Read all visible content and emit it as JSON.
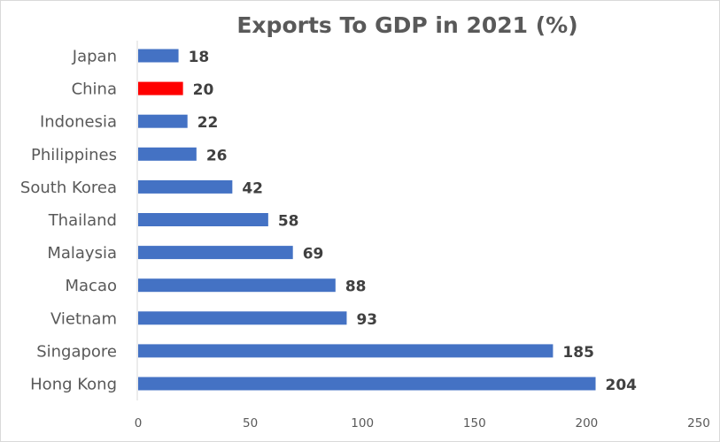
{
  "chart_data": {
    "type": "bar",
    "orientation": "horizontal",
    "title": "Exports To GDP in 2021 (%)",
    "xlabel": "",
    "ylabel": "",
    "categories": [
      "Japan",
      "China",
      "Indonesia",
      "Philippines",
      "South Korea",
      "Thailand",
      "Malaysia",
      "Macao",
      "Vietnam",
      "Singapore",
      "Hong Kong"
    ],
    "values": [
      18,
      20,
      22,
      26,
      42,
      58,
      69,
      88,
      93,
      185,
      204
    ],
    "value_labels": [
      "18",
      "20",
      "22",
      "26",
      "42",
      "58",
      "69",
      "88",
      "93",
      "185",
      "204"
    ],
    "highlight_category": "China",
    "xlim": [
      0,
      250
    ],
    "xticks": [
      0,
      50,
      100,
      150,
      200,
      250
    ],
    "xtick_labels": [
      "0",
      "50",
      "100",
      "150",
      "200",
      "250"
    ],
    "grid": false,
    "legend": "none",
    "colors": {
      "bar": "#4472c4",
      "highlight": "#ff0000",
      "highlight_label": "#ff0000",
      "label": "#404040",
      "text": "#595959",
      "axis": "#d9d9d9"
    }
  }
}
